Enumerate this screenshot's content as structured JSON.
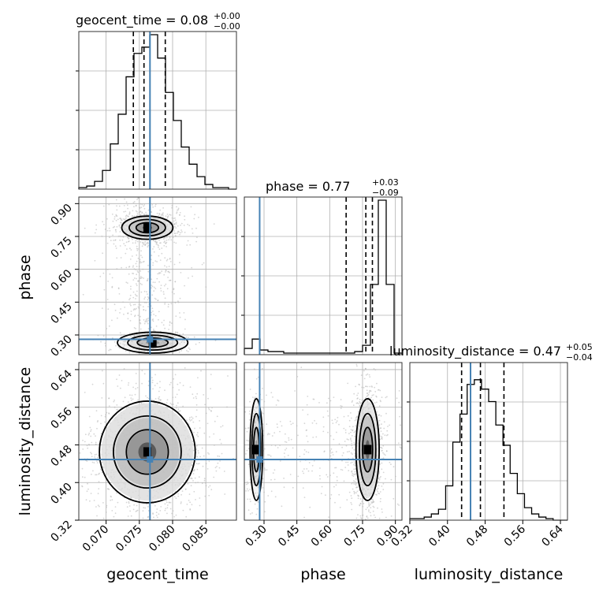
{
  "chart_data": {
    "type": "corner",
    "parameters": [
      "geocent_time",
      "phase",
      "luminosity_distance"
    ],
    "titles": [
      {
        "label": "geocent_time = 0.08",
        "sup": "+0.00",
        "sub": "−0.00"
      },
      {
        "label": "phase = 0.77",
        "sup": "+0.03",
        "sub": "−0.09"
      },
      {
        "label": "luminosity_distance = 0.47",
        "sup": "+0.05",
        "sub": "−0.04"
      }
    ],
    "axis_labels": {
      "x": [
        "geocent_time",
        "phase",
        "luminosity_distance"
      ],
      "y": [
        "phase",
        "luminosity_distance"
      ]
    },
    "ranges": {
      "geocent_time": [
        0.0659,
        0.0896
      ],
      "phase": [
        0.21,
        0.93
      ],
      "luminosity_distance": [
        0.32,
        0.655
      ]
    },
    "ticks": {
      "geocent_time": [
        0.07,
        0.075,
        0.08,
        0.085
      ],
      "geocent_time_labels": [
        "0.070",
        "0.075",
        "0.080",
        "0.085"
      ],
      "phase": [
        0.3,
        0.45,
        0.6,
        0.75,
        0.9
      ],
      "phase_labels": [
        "0.30",
        "0.45",
        "0.60",
        "0.75",
        "0.90"
      ],
      "luminosity_distance": [
        0.32,
        0.4,
        0.48,
        0.56,
        0.64
      ],
      "luminosity_distance_labels": [
        "0.32",
        "0.40",
        "0.48",
        "0.56",
        "0.64"
      ]
    },
    "injection": {
      "geocent_time": 0.0766,
      "phase": 0.28,
      "luminosity_distance": 0.449
    },
    "quantiles": {
      "geocent_time": [
        0.0741,
        0.0757,
        0.0789
      ],
      "phase": [
        0.675,
        0.765,
        0.795
      ],
      "luminosity_distance": [
        0.43,
        0.47,
        0.52
      ]
    },
    "histograms": {
      "geocent_time": {
        "edges_range": [
          0.0659,
          0.0896
        ],
        "bins": 20,
        "counts": [
          0.01,
          0.02,
          0.05,
          0.12,
          0.29,
          0.48,
          0.72,
          0.87,
          0.91,
          0.99,
          0.84,
          0.62,
          0.44,
          0.27,
          0.16,
          0.08,
          0.03,
          0.01,
          0.01,
          0.0
        ]
      },
      "phase": {
        "edges_range": [
          0.21,
          0.93
        ],
        "bins": 20,
        "counts": [
          0.04,
          0.1,
          0.03,
          0.02,
          0.02,
          0.01,
          0.01,
          0.01,
          0.01,
          0.01,
          0.01,
          0.01,
          0.01,
          0.01,
          0.02,
          0.06,
          0.45,
          0.99,
          0.45,
          0.01
        ]
      },
      "luminosity_distance": {
        "edges_range": [
          0.32,
          0.655
        ],
        "bins": 22,
        "counts": [
          0.01,
          0.01,
          0.02,
          0.04,
          0.07,
          0.22,
          0.5,
          0.68,
          0.87,
          0.9,
          0.84,
          0.76,
          0.61,
          0.48,
          0.3,
          0.17,
          0.08,
          0.04,
          0.02,
          0.01,
          0.0,
          0.0
        ]
      }
    },
    "density_2d": [
      {
        "x": "geocent_time",
        "y": "phase",
        "modes": [
          {
            "cx": 0.0762,
            "cy": 0.79,
            "sx": 0.0016,
            "sy": 0.022,
            "w": 0.55
          },
          {
            "cx": 0.077,
            "cy": 0.265,
            "sx": 0.0022,
            "sy": 0.02,
            "w": 0.12
          }
        ],
        "contour_levels": [
          0.85,
          0.55,
          0.25
        ]
      },
      {
        "x": "geocent_time",
        "y": "luminosity_distance",
        "modes": [
          {
            "cx": 0.0762,
            "cy": 0.465,
            "sx": 0.003,
            "sy": 0.045,
            "w": 1.0
          }
        ],
        "contour_levels": [
          0.85,
          0.55,
          0.25
        ]
      },
      {
        "x": "phase",
        "y": "luminosity_distance",
        "modes": [
          {
            "cx": 0.773,
            "cy": 0.47,
            "sx": 0.022,
            "sy": 0.045,
            "w": 0.85
          },
          {
            "cx": 0.265,
            "cy": 0.47,
            "sx": 0.012,
            "sy": 0.045,
            "w": 0.18
          }
        ],
        "contour_levels": [
          0.85,
          0.55,
          0.25
        ]
      }
    ],
    "grid": true,
    "colors": {
      "hist": "#000000",
      "injection": "#4682b4",
      "quantile": "#000000",
      "grid": "#b0b0b0",
      "scatter": "#b4b4b4"
    }
  }
}
